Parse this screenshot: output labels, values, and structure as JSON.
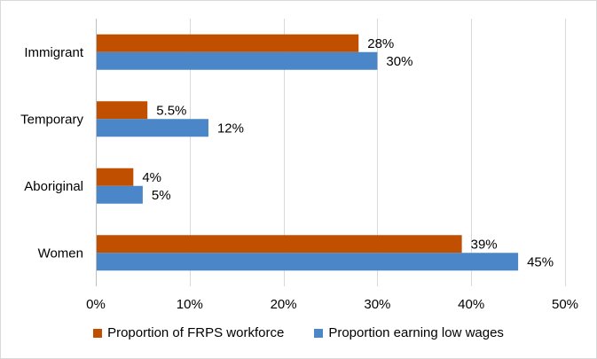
{
  "chart_data": {
    "type": "bar",
    "orientation": "horizontal",
    "categories": [
      "Immigrant",
      "Temporary",
      "Aboriginal",
      "Women"
    ],
    "series": [
      {
        "name": "Proportion of FRPS workforce",
        "values": [
          28,
          5.5,
          4,
          39
        ],
        "labels": [
          "28%",
          "5.5%",
          "4%",
          "39%"
        ],
        "color": "#c04f00"
      },
      {
        "name": "Proportion earning low wages",
        "values": [
          30,
          12,
          5,
          45
        ],
        "labels": [
          "30%",
          "12%",
          "5%",
          "45%"
        ],
        "color": "#4a86c8"
      }
    ],
    "xlim": [
      0,
      50
    ],
    "xticks": [
      0,
      10,
      20,
      30,
      40,
      50
    ],
    "xtick_labels": [
      "0%",
      "10%",
      "20%",
      "30%",
      "40%",
      "50%"
    ],
    "grid": "vertical",
    "legend_position": "bottom",
    "title": "",
    "xlabel": "",
    "ylabel": ""
  }
}
